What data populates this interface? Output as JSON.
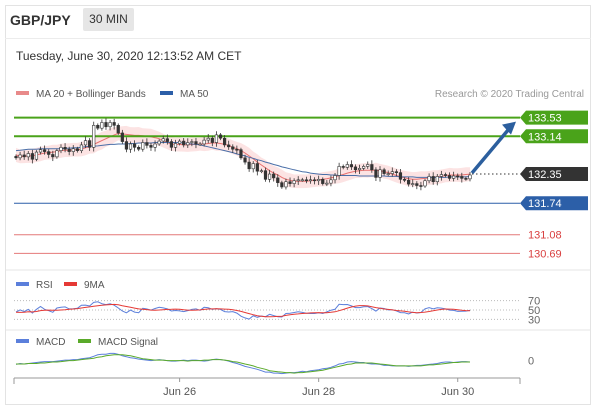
{
  "header": {
    "symbol": "GBP/JPY",
    "timeframe": "30 MIN",
    "datetime": "Tuesday, June 30, 2020 12:13:52 AM CET"
  },
  "credit": "Research © 2020 Trading Central",
  "colors": {
    "up": "#ffffff",
    "down": "#333333",
    "ma20": "#e8706f",
    "band": "#fbdcdc",
    "ma50": "#4a6fa8",
    "resistance": "#4aa31a",
    "support_blue": "#2c5fa8",
    "support_red": "#d94040",
    "arrow": "#2c5f9e",
    "rsi": "#5b7fdb",
    "rsi_ma": "#e53935",
    "macd": "#5b7fdb",
    "macd_signal": "#5aaa2a"
  },
  "chart_data": [
    {
      "type": "candlestick",
      "legend": [
        {
          "name": "MA 20 + Bollinger Bands",
          "color": "#e88a8a"
        },
        {
          "name": "MA 50",
          "color": "#2c5fa8"
        }
      ],
      "x_tick_labels": [
        "Jun 26",
        "Jun 28",
        "Jun 30"
      ],
      "ylim": [
        130.3,
        133.9
      ],
      "close": [
        132.69,
        132.75,
        132.71,
        132.78,
        132.66,
        132.81,
        132.86,
        132.82,
        132.76,
        132.71,
        132.84,
        132.91,
        132.87,
        132.82,
        132.88,
        132.84,
        132.96,
        133.05,
        132.91,
        133.37,
        133.31,
        133.43,
        133.34,
        133.43,
        133.37,
        133.21,
        133.03,
        132.87,
        132.98,
        132.91,
        132.87,
        133.01,
        132.95,
        132.91,
        132.98,
        133.04,
        133.09,
        133.03,
        132.91,
        132.99,
        133.04,
        132.96,
        133.01,
        133.03,
        132.98,
        132.98,
        133.06,
        133.1,
        133.01,
        133.17,
        133.1,
        132.96,
        132.92,
        132.87,
        132.86,
        132.69,
        132.6,
        132.46,
        132.57,
        132.41,
        132.42,
        132.24,
        132.35,
        132.27,
        132.17,
        132.08,
        132.19,
        132.15,
        132.21,
        132.23,
        132.23,
        132.21,
        132.23,
        132.21,
        132.24,
        132.15,
        132.16,
        132.23,
        132.32,
        132.51,
        132.49,
        132.55,
        132.5,
        132.44,
        132.47,
        132.51,
        132.55,
        132.44,
        132.28,
        132.44,
        132.36,
        132.36,
        132.4,
        132.38,
        132.24,
        132.22,
        132.14,
        132.15,
        132.11,
        132.1,
        132.21,
        132.3,
        132.19,
        132.3,
        132.34,
        132.32,
        132.26,
        132.31,
        132.3,
        132.26,
        132.25,
        132.33
      ],
      "ma20": [
        132.75,
        132.72,
        132.72,
        132.73,
        132.73,
        132.75,
        132.77,
        132.79,
        132.8,
        132.81,
        132.82,
        132.84,
        132.85,
        132.85,
        132.86,
        132.86,
        132.87,
        132.9,
        132.92,
        132.97,
        133.01,
        133.05,
        133.09,
        133.13,
        133.17,
        133.2,
        133.19,
        133.18,
        133.17,
        133.16,
        133.16,
        133.15,
        133.14,
        133.13,
        133.11,
        133.09,
        133.05,
        133.01,
        132.98,
        132.97,
        132.97,
        132.96,
        132.96,
        132.97,
        132.97,
        132.98,
        132.98,
        132.99,
        133.0,
        133.0,
        132.99,
        132.97,
        132.95,
        132.91,
        132.88,
        132.84,
        132.79,
        132.73,
        132.67,
        132.6,
        132.54,
        132.48,
        132.42,
        132.37,
        132.33,
        132.28,
        132.24,
        132.22,
        132.2,
        132.2,
        132.2,
        132.2,
        132.21,
        132.22,
        132.23,
        132.24,
        132.25,
        132.27,
        132.29,
        132.32,
        132.34,
        132.37,
        132.39,
        132.41,
        132.42,
        132.43,
        132.43,
        132.43,
        132.43,
        132.42,
        132.4,
        132.38,
        132.35,
        132.32,
        132.29,
        132.27,
        132.25,
        132.24,
        132.24,
        132.25,
        132.26,
        132.27,
        132.28,
        132.29,
        132.3,
        132.32,
        132.33,
        132.33,
        132.33,
        132.33,
        132.34,
        132.35
      ],
      "ma50": [
        132.84,
        132.85,
        132.86,
        132.87,
        132.87,
        132.87,
        132.88,
        132.88,
        132.88,
        132.88,
        132.88,
        132.88,
        132.89,
        132.89,
        132.9,
        132.9,
        132.91,
        132.92,
        132.93,
        132.93,
        132.94,
        132.95,
        132.96,
        132.97,
        132.97,
        132.98,
        132.98,
        132.98,
        132.99,
        132.99,
        133.0,
        133.0,
        133.0,
        133.0,
        133.01,
        133.01,
        133.01,
        133.01,
        133.01,
        133.01,
        133.01,
        133.0,
        132.99,
        132.98,
        132.97,
        132.96,
        132.94,
        132.92,
        132.9,
        132.88,
        132.86,
        132.84,
        132.82,
        132.8,
        132.77,
        132.75,
        132.73,
        132.7,
        132.68,
        132.65,
        132.63,
        132.6,
        132.58,
        132.55,
        132.53,
        132.5,
        132.48,
        132.46,
        132.44,
        132.42,
        132.4,
        132.39,
        132.37,
        132.36,
        132.35,
        132.34,
        132.34,
        132.33,
        132.33,
        132.32,
        132.32,
        132.32,
        132.32,
        132.32,
        132.31,
        132.31,
        132.31,
        132.31,
        132.31,
        132.31,
        132.31,
        132.3,
        132.3,
        132.3,
        132.29,
        132.29,
        132.29,
        132.29,
        132.28,
        132.28,
        132.28,
        132.28,
        132.28,
        132.28,
        132.28,
        132.28,
        132.29,
        132.29,
        132.29,
        132.29,
        132.29,
        132.3
      ]
    },
    {
      "type": "line",
      "legend": [
        {
          "name": "RSI",
          "color": "#5b7fdb"
        },
        {
          "name": "9MA",
          "color": "#e53935"
        }
      ],
      "y_tick_labels": [
        "70",
        "50",
        "30"
      ],
      "ylim": [
        20,
        80
      ],
      "rsi": [
        45.7,
        50.2,
        46.6,
        51.2,
        43.3,
        51.5,
        57.4,
        51.4,
        48.4,
        45.1,
        54.2,
        55.8,
        56.7,
        52.4,
        52.8,
        53.6,
        60.3,
        60.4,
        58.5,
        66.3,
        67.6,
        63.6,
        61.5,
        63.2,
        60.3,
        54.2,
        47.8,
        44.0,
        49.8,
        45.4,
        44.2,
        53.6,
        52.1,
        49.7,
        53.3,
        55.8,
        54.4,
        52.3,
        47.8,
        49.0,
        48.1,
        46.5,
        48.5,
        51.3,
        52.3,
        49.3,
        55.8,
        54.7,
        51.3,
        53.0,
        51.2,
        46.6,
        45.7,
        46.5,
        43.4,
        36.7,
        33.0,
        30.6,
        37.7,
        34.2,
        37.1,
        35.6,
        40.7,
        38.0,
        35.6,
        35.1,
        42.6,
        43.2,
        44.7,
        46.4,
        44.8,
        43.1,
        42.6,
        42.5,
        44.3,
        42.6,
        45.9,
        49.5,
        51.4,
        62.2,
        61.6,
        61.8,
        58.8,
        55.2,
        55.2,
        56.9,
        57.2,
        53.0,
        47.6,
        54.3,
        53.3,
        50.3,
        50.7,
        48.1,
        44.5,
        44.1,
        41.5,
        45.5,
        43.5,
        44.6,
        52.6,
        55.1,
        52.4,
        54.8,
        54.0,
        52.5,
        49.8,
        49.2,
        47.1,
        47.3,
        47.7,
        49.4
      ],
      "rsi_ma": [
        45.1,
        44.8,
        45.0,
        46.1,
        45.9,
        46.8,
        48.8,
        49.6,
        49.8,
        49.5,
        49.6,
        50.0,
        50.4,
        51.8,
        52.2,
        53.0,
        54.3,
        55.6,
        56.7,
        58.1,
        59.2,
        60.0,
        60.9,
        61.6,
        62.0,
        61.1,
        59.3,
        57.5,
        55.7,
        54.0,
        52.3,
        51.8,
        50.9,
        49.8,
        49.6,
        49.9,
        50.6,
        51.2,
        51.6,
        52.0,
        51.6,
        50.4,
        49.8,
        49.6,
        49.8,
        50.2,
        51.3,
        52.2,
        52.4,
        52.5,
        52.4,
        51.9,
        51.4,
        50.5,
        49.0,
        46.9,
        44.6,
        42.2,
        39.9,
        37.8,
        36.5,
        35.7,
        35.7,
        35.9,
        36.3,
        36.8,
        38.4,
        39.8,
        40.9,
        41.7,
        42.5,
        43.2,
        43.8,
        44.2,
        44.4,
        44.2,
        44.3,
        45.1,
        46.1,
        48.6,
        51.1,
        54.0,
        56.5,
        58.4,
        59.4,
        59.4,
        58.7,
        56.9,
        55.1,
        53.6,
        52.2,
        51.2,
        50.2,
        49.0,
        48.1,
        47.5,
        46.0,
        44.9,
        43.9,
        44.6,
        45.5,
        46.7,
        48.3,
        50.1,
        51.3,
        52.1,
        51.9,
        51.4,
        50.6,
        49.6,
        48.8,
        48.2
      ],
      "y_tick_values": [
        70,
        50,
        30
      ]
    },
    {
      "type": "line",
      "legend": [
        {
          "name": "MACD",
          "color": "#5b7fdb"
        },
        {
          "name": "MACD Signal",
          "color": "#5aaa2a"
        }
      ],
      "y_tick_labels": [
        "0"
      ],
      "ylim": [
        -0.32,
        0.22
      ],
      "macd": [
        -0.08,
        -0.06,
        -0.07,
        -0.06,
        -0.05,
        -0.04,
        -0.03,
        -0.02,
        -0.02,
        -0.02,
        -0.01,
        0.0,
        0.01,
        0.01,
        0.02,
        0.02,
        0.04,
        0.05,
        0.06,
        0.09,
        0.12,
        0.13,
        0.13,
        0.15,
        0.15,
        0.13,
        0.1,
        0.08,
        0.06,
        0.05,
        0.03,
        0.02,
        0.01,
        0.0,
        0.01,
        0.02,
        0.01,
        0.0,
        -0.01,
        -0.01,
        0.0,
        0.01,
        0.0,
        0.01,
        0.01,
        0.0,
        -0.01,
        0.0,
        0.02,
        0.03,
        0.02,
        0.01,
        -0.01,
        -0.04,
        -0.06,
        -0.09,
        -0.12,
        -0.14,
        -0.16,
        -0.18,
        -0.21,
        -0.24,
        -0.24,
        -0.26,
        -0.26,
        -0.27,
        -0.26,
        -0.25,
        -0.25,
        -0.24,
        -0.22,
        -0.23,
        -0.21,
        -0.2,
        -0.19,
        -0.17,
        -0.16,
        -0.14,
        -0.11,
        -0.07,
        -0.06,
        -0.03,
        -0.02,
        -0.03,
        -0.04,
        -0.04,
        -0.06,
        -0.07,
        -0.07,
        -0.08,
        -0.1,
        -0.1,
        -0.11,
        -0.11,
        -0.11,
        -0.11,
        -0.12,
        -0.11,
        -0.1,
        -0.1,
        -0.09,
        -0.08,
        -0.07,
        -0.06,
        -0.04,
        -0.03,
        -0.03,
        -0.04,
        -0.03,
        -0.02,
        -0.02,
        -0.03
      ],
      "macd_signal": [
        -0.07,
        -0.07,
        -0.07,
        -0.06,
        -0.06,
        -0.06,
        -0.05,
        -0.05,
        -0.04,
        -0.03,
        -0.03,
        -0.02,
        -0.01,
        0.0,
        0.0,
        0.01,
        0.02,
        0.03,
        0.04,
        0.05,
        0.07,
        0.08,
        0.1,
        0.11,
        0.12,
        0.12,
        0.12,
        0.11,
        0.1,
        0.08,
        0.06,
        0.04,
        0.03,
        0.02,
        0.01,
        0.01,
        0.01,
        0.0,
        -0.0,
        -0.0,
        -0.0,
        -0.0,
        -0.01,
        -0.0,
        0.0,
        0.0,
        0.01,
        0.01,
        0.02,
        0.02,
        0.02,
        0.01,
        0.0,
        -0.02,
        -0.03,
        -0.05,
        -0.07,
        -0.09,
        -0.11,
        -0.14,
        -0.16,
        -0.18,
        -0.21,
        -0.22,
        -0.23,
        -0.24,
        -0.25,
        -0.25,
        -0.26,
        -0.25,
        -0.25,
        -0.24,
        -0.23,
        -0.22,
        -0.21,
        -0.2,
        -0.18,
        -0.16,
        -0.14,
        -0.12,
        -0.1,
        -0.08,
        -0.07,
        -0.05,
        -0.05,
        -0.05,
        -0.05,
        -0.05,
        -0.06,
        -0.07,
        -0.08,
        -0.09,
        -0.1,
        -0.11,
        -0.11,
        -0.11,
        -0.11,
        -0.11,
        -0.11,
        -0.11,
        -0.1,
        -0.09,
        -0.09,
        -0.08,
        -0.07,
        -0.06,
        -0.05,
        -0.04,
        -0.04,
        -0.03,
        -0.03,
        -0.03
      ]
    }
  ],
  "levels": [
    {
      "value": 133.53,
      "label": "133.53",
      "kind": "resistance"
    },
    {
      "value": 133.14,
      "label": "133.14",
      "kind": "resistance"
    },
    {
      "value": 132.35,
      "label": "132.35",
      "kind": "current"
    },
    {
      "value": 131.74,
      "label": "131.74",
      "kind": "support_blue"
    },
    {
      "value": 131.08,
      "label": "131.08",
      "kind": "support_red"
    },
    {
      "value": 130.69,
      "label": "130.69",
      "kind": "support_red"
    }
  ]
}
